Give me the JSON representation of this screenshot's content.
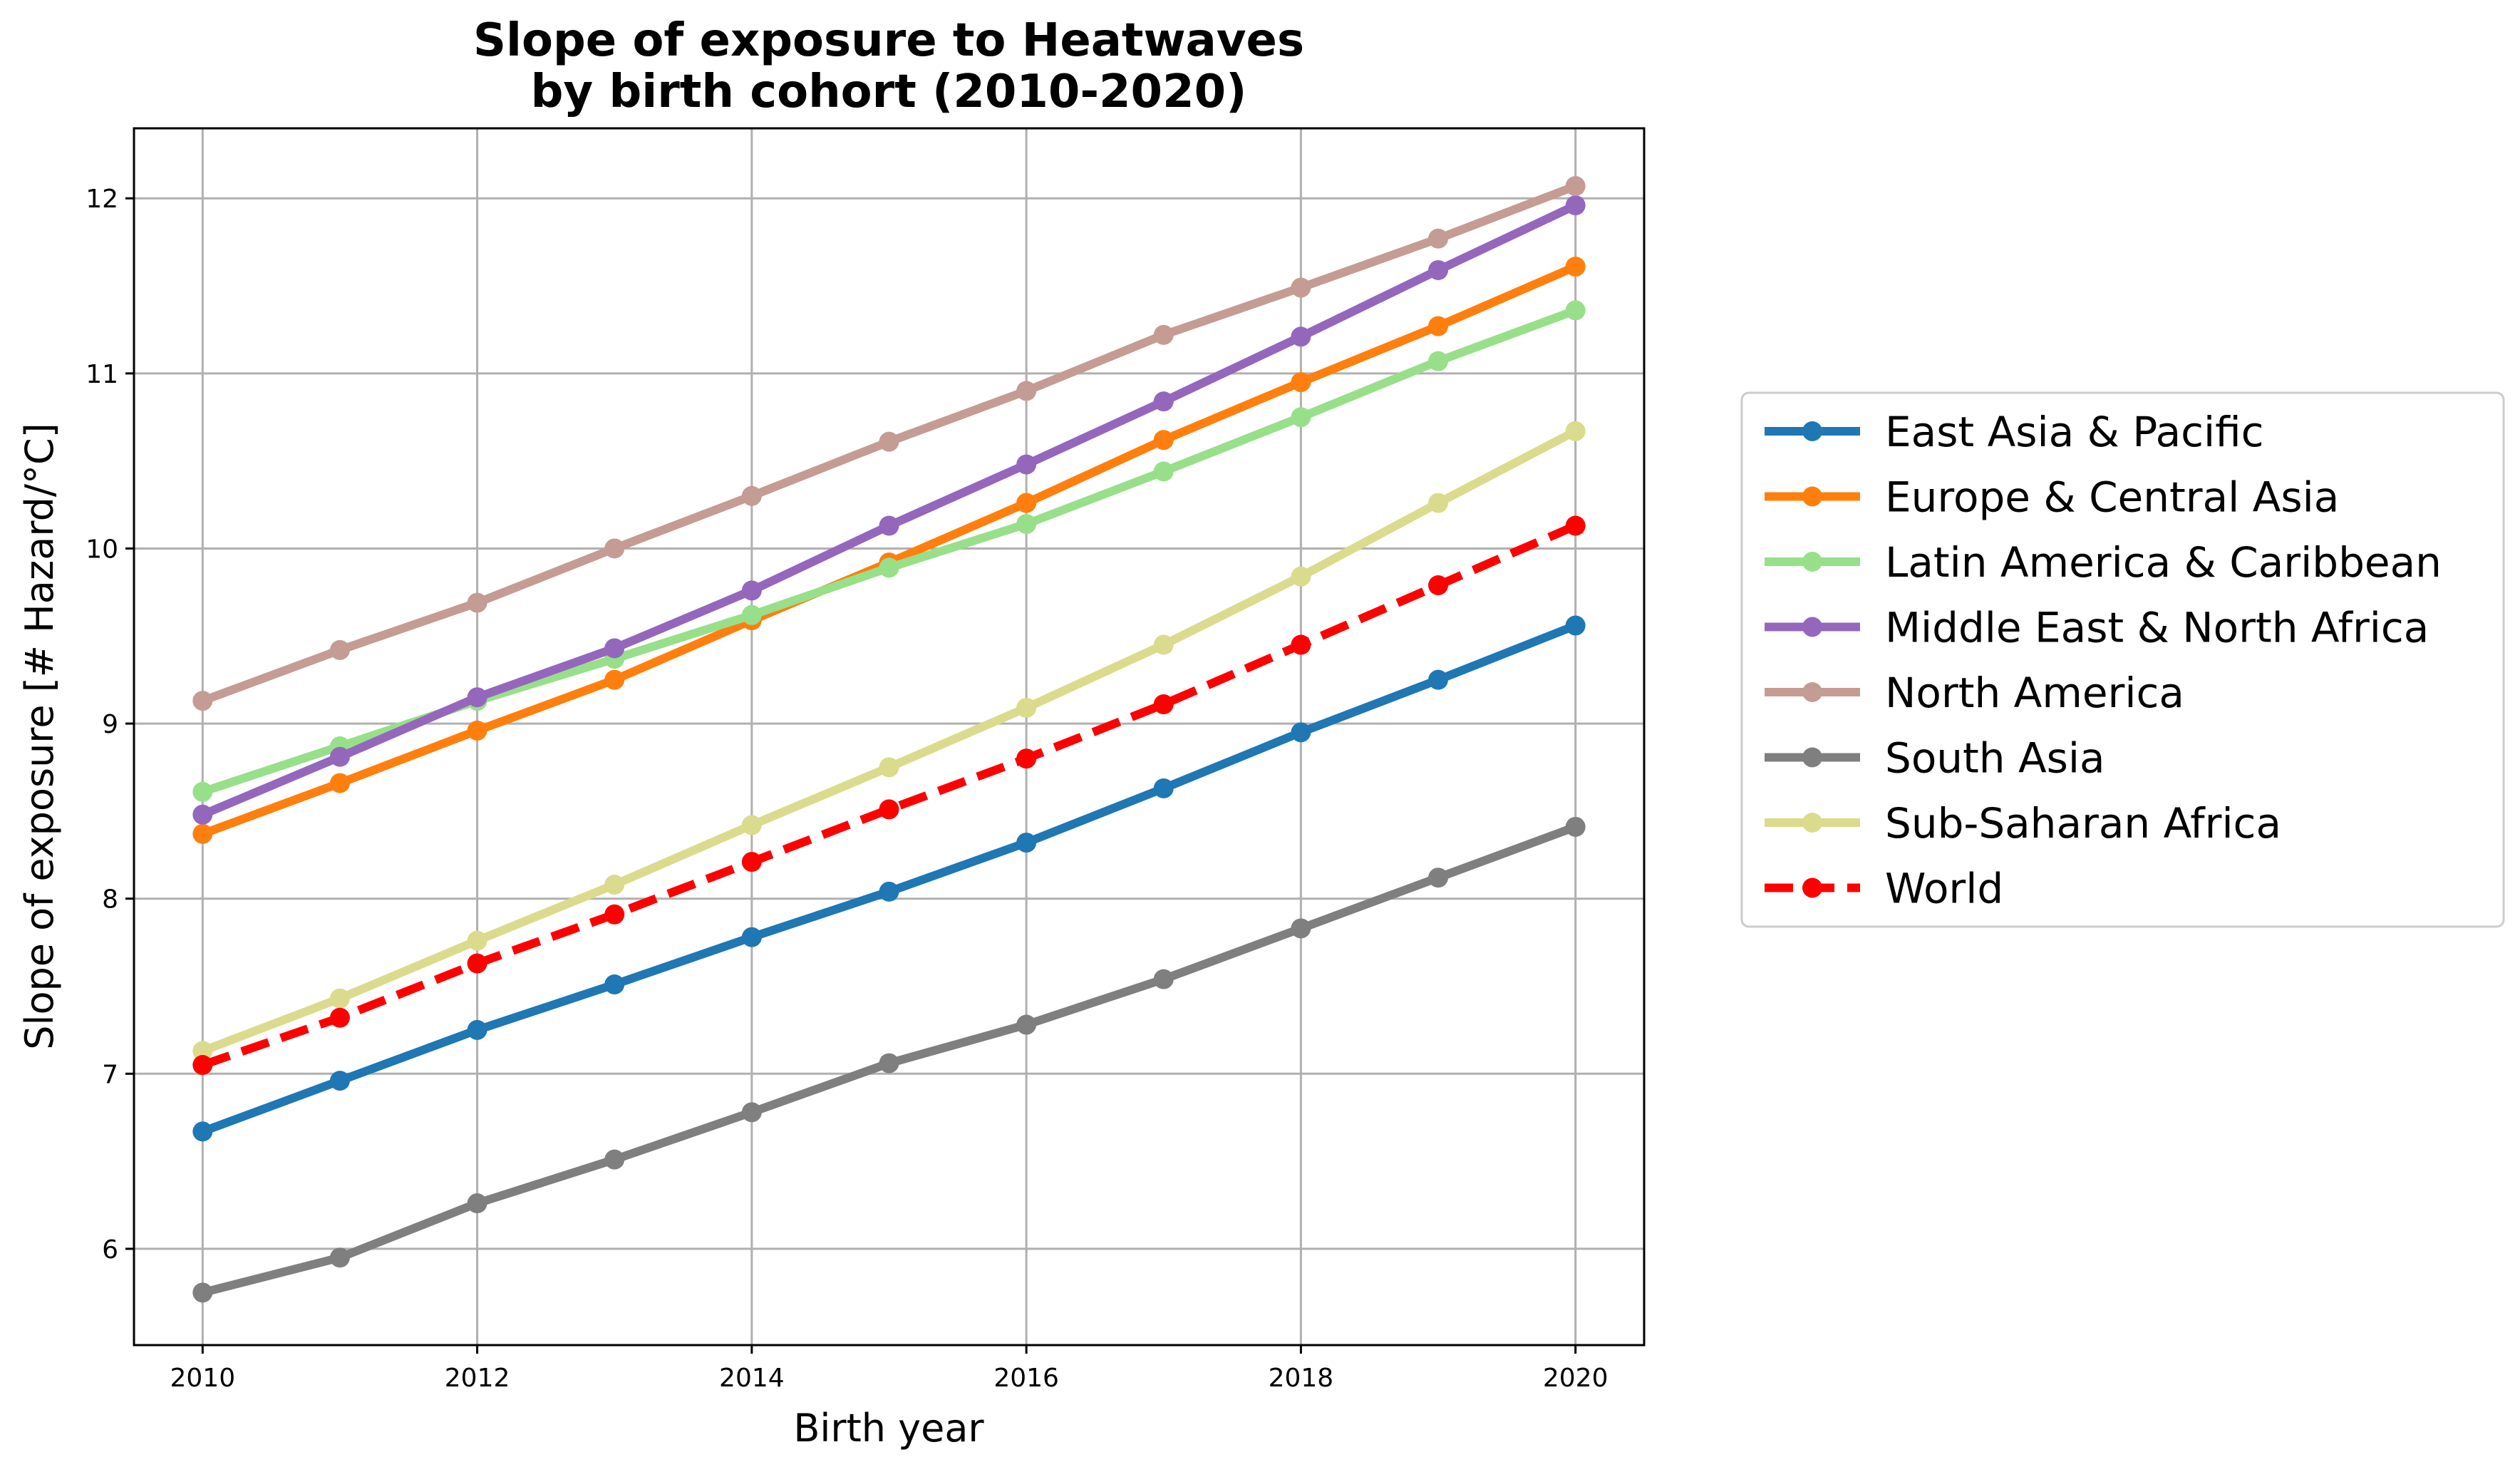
{
  "chart_data": {
    "type": "line",
    "title_lines": [
      "Slope of exposure to Heatwaves",
      "by birth cohort (2010-2020)"
    ],
    "xlabel": "Birth year",
    "ylabel": "Slope of exposure [# Hazard/°C]",
    "x": [
      2010,
      2011,
      2012,
      2013,
      2014,
      2015,
      2016,
      2017,
      2018,
      2019,
      2020
    ],
    "xlim": [
      2009.5,
      2020.5
    ],
    "ylim": [
      5.45,
      12.4
    ],
    "xticks": [
      2010,
      2012,
      2014,
      2016,
      2018,
      2020
    ],
    "xtick_labels": [
      "2010",
      "2012",
      "2014",
      "2016",
      "2018",
      "2020"
    ],
    "yticks": [
      6,
      7,
      8,
      9,
      10,
      11,
      12
    ],
    "ytick_labels": [
      "6",
      "7",
      "8",
      "9",
      "10",
      "11",
      "12"
    ],
    "grid": true,
    "legend_placement": "right outside",
    "series": [
      {
        "name": "East Asia & Pacific",
        "color": "#1f77b4",
        "dashed": false,
        "values": [
          6.67,
          6.96,
          7.25,
          7.51,
          7.78,
          8.04,
          8.32,
          8.63,
          8.95,
          9.25,
          9.56
        ]
      },
      {
        "name": "Europe & Central Asia",
        "color": "#ff7f0e",
        "dashed": false,
        "values": [
          8.37,
          8.66,
          8.96,
          9.25,
          9.59,
          9.92,
          10.26,
          10.62,
          10.95,
          11.27,
          11.61
        ]
      },
      {
        "name": "Latin America & Caribbean",
        "color": "#98df8a",
        "dashed": false,
        "values": [
          8.61,
          8.87,
          9.13,
          9.37,
          9.62,
          9.89,
          10.14,
          10.44,
          10.75,
          11.07,
          11.36
        ]
      },
      {
        "name": "Middle East & North Africa",
        "color": "#9467bd",
        "dashed": false,
        "values": [
          8.48,
          8.81,
          9.15,
          9.43,
          9.76,
          10.13,
          10.48,
          10.84,
          11.21,
          11.59,
          11.96
        ]
      },
      {
        "name": "North America",
        "color": "#c49c94",
        "dashed": false,
        "values": [
          9.13,
          9.42,
          9.69,
          10.0,
          10.3,
          10.61,
          10.9,
          11.22,
          11.49,
          11.77,
          12.07
        ]
      },
      {
        "name": "South Asia",
        "color": "#7f7f7f",
        "dashed": false,
        "values": [
          5.75,
          5.95,
          6.26,
          6.51,
          6.78,
          7.06,
          7.28,
          7.54,
          7.83,
          8.12,
          8.41
        ]
      },
      {
        "name": "Sub-Saharan Africa",
        "color": "#dbdb8d",
        "dashed": false,
        "values": [
          7.13,
          7.43,
          7.76,
          8.08,
          8.42,
          8.75,
          9.09,
          9.45,
          9.84,
          10.26,
          10.67
        ]
      },
      {
        "name": "World",
        "color": "#ff0000",
        "dashed": true,
        "values": [
          7.05,
          7.32,
          7.63,
          7.91,
          8.21,
          8.51,
          8.8,
          9.11,
          9.45,
          9.79,
          10.13
        ]
      }
    ]
  }
}
